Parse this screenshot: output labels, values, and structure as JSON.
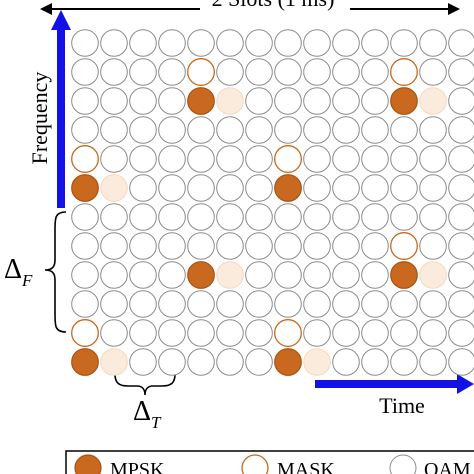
{
  "figure": {
    "top_span_label": "2 Slots (1 ms)",
    "frequency_label": "Frequency",
    "time_label": "Time",
    "delta_f_symbol": "Δ",
    "delta_f_sub": "F",
    "delta_t_symbol": "Δ",
    "delta_t_sub": "T"
  },
  "grid": {
    "rows": 12,
    "cols": 14,
    "cells": [
      {
        "row": 1,
        "col": 4,
        "type": "mask-ring"
      },
      {
        "row": 1,
        "col": 11,
        "type": "mask-ring"
      },
      {
        "row": 2,
        "col": 4,
        "type": "mpsk"
      },
      {
        "row": 2,
        "col": 5,
        "type": "mask"
      },
      {
        "row": 2,
        "col": 11,
        "type": "mpsk"
      },
      {
        "row": 2,
        "col": 12,
        "type": "mask"
      },
      {
        "row": 4,
        "col": 0,
        "type": "mask-ring"
      },
      {
        "row": 4,
        "col": 7,
        "type": "mask-ring"
      },
      {
        "row": 5,
        "col": 0,
        "type": "mpsk"
      },
      {
        "row": 5,
        "col": 1,
        "type": "mask"
      },
      {
        "row": 5,
        "col": 7,
        "type": "mpsk"
      },
      {
        "row": 7,
        "col": 11,
        "type": "mask-ring"
      },
      {
        "row": 8,
        "col": 4,
        "type": "mpsk"
      },
      {
        "row": 8,
        "col": 5,
        "type": "mask"
      },
      {
        "row": 8,
        "col": 11,
        "type": "mpsk"
      },
      {
        "row": 8,
        "col": 12,
        "type": "mask"
      },
      {
        "row": 10,
        "col": 0,
        "type": "mask-ring"
      },
      {
        "row": 10,
        "col": 7,
        "type": "mask-ring"
      },
      {
        "row": 11,
        "col": 0,
        "type": "mpsk"
      },
      {
        "row": 11,
        "col": 1,
        "type": "mask"
      },
      {
        "row": 11,
        "col": 7,
        "type": "mpsk"
      },
      {
        "row": 11,
        "col": 8,
        "type": "mask"
      }
    ]
  },
  "legend": [
    {
      "label": "MPSK",
      "type": "mpsk"
    },
    {
      "label": "MASK",
      "type": "mask-ring"
    },
    {
      "label": "QAM",
      "type": "empty"
    }
  ],
  "colors": {
    "mpsk_fill": "#c8691f",
    "mpsk_stroke": "#a85413",
    "mask_fill": "#fbebdc",
    "mask_stroke": "#f2d9c1",
    "mask_ring_stroke": "#c8691f",
    "empty_stroke": "#8c8c8c",
    "arrow_blue": "#1212e6"
  }
}
